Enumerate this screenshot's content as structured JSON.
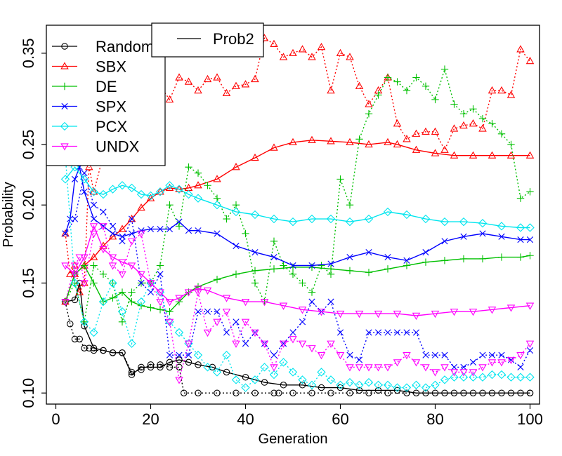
{
  "chart_data": {
    "type": "line",
    "xlabel": "Generation",
    "ylabel": "Probability",
    "xlim": [
      -2,
      102
    ],
    "ylim": [
      0.096,
      0.388
    ],
    "y_scale": "log",
    "xticks": [
      0,
      20,
      40,
      60,
      80,
      100
    ],
    "yticks": [
      0.1,
      0.15,
      0.2,
      0.25,
      0.35
    ],
    "xtick_labels": [
      "0",
      "20",
      "40",
      "60",
      "80",
      "100"
    ],
    "ytick_labels": [
      "0.10",
      "0.15",
      "0.20",
      "0.25",
      "0.35"
    ],
    "legend_placement": "top-left",
    "legend_prob2": "Prob2",
    "series": [
      {
        "name": "Random",
        "legend_label": "Random",
        "color": "#000000",
        "marker": "circle",
        "solid_x": [
          2,
          4,
          5,
          6,
          8,
          10,
          12,
          14,
          16,
          18,
          20,
          22,
          24,
          26,
          28,
          30,
          33,
          36,
          40,
          44,
          48,
          52,
          56,
          60,
          64,
          68,
          72,
          76,
          80,
          84,
          88,
          92,
          96,
          100
        ],
        "solid_y": [
          0.14,
          0.141,
          0.15,
          0.128,
          0.118,
          0.117,
          0.116,
          0.116,
          0.107,
          0.11,
          0.11,
          0.11,
          0.112,
          0.113,
          0.112,
          0.111,
          0.11,
          0.108,
          0.106,
          0.104,
          0.103,
          0.103,
          0.102,
          0.102,
          0.101,
          0.101,
          0.101,
          0.1,
          0.1,
          0.1,
          0.1,
          0.1,
          0.1,
          0.1
        ],
        "dotted_x": [
          2,
          3,
          4,
          5,
          6,
          7,
          8,
          10,
          12,
          14,
          16,
          18,
          20,
          22,
          24,
          26,
          27,
          30,
          34,
          38,
          42,
          46,
          47,
          50,
          54,
          58,
          62,
          66,
          70,
          74,
          78,
          82,
          86,
          90,
          94,
          98,
          100
        ],
        "dotted_y": [
          0.14,
          0.129,
          0.122,
          0.122,
          0.118,
          0.118,
          0.117,
          0.117,
          0.116,
          0.116,
          0.108,
          0.109,
          0.111,
          0.111,
          0.11,
          0.11,
          0.1,
          0.1,
          0.1,
          0.1,
          0.1,
          0.1,
          0.1,
          0.1,
          0.1,
          0.1,
          0.1,
          0.1,
          0.1,
          0.1,
          0.1,
          0.1,
          0.1,
          0.1,
          0.1,
          0.1,
          0.1
        ]
      },
      {
        "name": "SBX",
        "legend_label": "SBX",
        "color": "#ff0000",
        "marker": "triangle",
        "solid_x": [
          2,
          4,
          6,
          8,
          10,
          12,
          14,
          16,
          18,
          20,
          22,
          24,
          26,
          28,
          30,
          34,
          38,
          42,
          46,
          50,
          54,
          58,
          62,
          66,
          70,
          72,
          76,
          80,
          84,
          88,
          92,
          96,
          100
        ],
        "solid_y": [
          0.14,
          0.155,
          0.16,
          0.165,
          0.172,
          0.178,
          0.183,
          0.19,
          0.198,
          0.205,
          0.21,
          0.213,
          0.212,
          0.213,
          0.215,
          0.22,
          0.23,
          0.238,
          0.247,
          0.252,
          0.254,
          0.253,
          0.252,
          0.25,
          0.252,
          0.25,
          0.245,
          0.242,
          0.24,
          0.24,
          0.24,
          0.24,
          0.24
        ],
        "dotted_x": [
          2,
          3,
          4,
          5,
          6,
          7,
          8,
          10,
          12,
          14,
          16,
          18,
          20,
          22,
          24,
          26,
          28,
          30,
          32,
          34,
          36,
          38,
          40,
          42,
          44,
          46,
          48,
          50,
          52,
          54,
          56,
          58,
          60,
          62,
          64,
          66,
          68,
          70,
          72,
          74,
          76,
          78,
          80,
          82,
          84,
          86,
          88,
          90,
          92,
          94,
          96,
          98,
          100
        ],
        "dotted_y": [
          0.18,
          0.155,
          0.16,
          0.145,
          0.15,
          0.23,
          0.21,
          0.24,
          0.26,
          0.28,
          0.29,
          0.3,
          0.305,
          0.31,
          0.295,
          0.32,
          0.315,
          0.305,
          0.318,
          0.32,
          0.302,
          0.31,
          0.312,
          0.318,
          0.37,
          0.362,
          0.345,
          0.35,
          0.355,
          0.345,
          0.358,
          0.305,
          0.35,
          0.345,
          0.31,
          0.29,
          0.305,
          0.32,
          0.27,
          0.255,
          0.26,
          0.262,
          0.262,
          0.245,
          0.265,
          0.268,
          0.27,
          0.265,
          0.305,
          0.305,
          0.3,
          0.355,
          0.34
        ]
      },
      {
        "name": "DE",
        "legend_label": "DE",
        "color": "#00c000",
        "marker": "plus",
        "solid_x": [
          2,
          4,
          6,
          8,
          10,
          12,
          14,
          16,
          18,
          20,
          22,
          24,
          26,
          28,
          30,
          34,
          38,
          42,
          46,
          50,
          54,
          58,
          62,
          66,
          70,
          74,
          78,
          82,
          86,
          90,
          94,
          98,
          100
        ],
        "solid_y": [
          0.14,
          0.155,
          0.16,
          0.15,
          0.14,
          0.142,
          0.145,
          0.14,
          0.138,
          0.137,
          0.136,
          0.135,
          0.14,
          0.145,
          0.148,
          0.152,
          0.155,
          0.157,
          0.158,
          0.159,
          0.159,
          0.158,
          0.157,
          0.156,
          0.158,
          0.16,
          0.162,
          0.163,
          0.164,
          0.164,
          0.165,
          0.165,
          0.166
        ],
        "dotted_x": [
          2,
          4,
          6,
          8,
          10,
          12,
          14,
          16,
          18,
          20,
          22,
          24,
          26,
          28,
          30,
          32,
          34,
          36,
          38,
          40,
          42,
          44,
          46,
          48,
          50,
          52,
          54,
          56,
          58,
          60,
          62,
          64,
          66,
          68,
          70,
          72,
          74,
          76,
          78,
          80,
          82,
          84,
          86,
          88,
          90,
          92,
          94,
          96,
          98,
          100
        ],
        "dotted_y": [
          0.14,
          0.15,
          0.13,
          0.16,
          0.155,
          0.15,
          0.13,
          0.145,
          0.15,
          0.15,
          0.16,
          0.2,
          0.185,
          0.23,
          0.225,
          0.215,
          0.205,
          0.19,
          0.2,
          0.18,
          0.15,
          0.14,
          0.175,
          0.16,
          0.155,
          0.15,
          0.145,
          0.16,
          0.155,
          0.22,
          0.2,
          0.255,
          0.28,
          0.3,
          0.32,
          0.315,
          0.305,
          0.32,
          0.31,
          0.295,
          0.33,
          0.29,
          0.28,
          0.285,
          0.275,
          0.27,
          0.26,
          0.25,
          0.205,
          0.21
        ]
      },
      {
        "name": "SPX",
        "legend_label": "SPX",
        "color": "#0000ff",
        "marker": "cross",
        "solid_x": [
          2,
          3,
          4,
          5,
          6,
          8,
          10,
          12,
          14,
          16,
          18,
          20,
          22,
          24,
          26,
          28,
          30,
          34,
          38,
          42,
          46,
          50,
          54,
          58,
          62,
          66,
          70,
          74,
          78,
          82,
          86,
          90,
          94,
          98,
          100
        ],
        "solid_y": [
          0.18,
          0.19,
          0.22,
          0.23,
          0.21,
          0.19,
          0.185,
          0.18,
          0.178,
          0.18,
          0.182,
          0.183,
          0.183,
          0.183,
          0.188,
          0.182,
          0.182,
          0.18,
          0.172,
          0.168,
          0.165,
          0.16,
          0.16,
          0.161,
          0.165,
          0.168,
          0.165,
          0.163,
          0.168,
          0.175,
          0.178,
          0.18,
          0.178,
          0.176,
          0.176
        ],
        "dotted_x": [
          2,
          4,
          6,
          8,
          10,
          12,
          14,
          16,
          18,
          20,
          22,
          24,
          26,
          28,
          30,
          32,
          34,
          36,
          38,
          40,
          42,
          44,
          46,
          48,
          50,
          52,
          54,
          56,
          58,
          60,
          62,
          64,
          66,
          68,
          70,
          72,
          74,
          76,
          78,
          80,
          82,
          84,
          86,
          88,
          90,
          92,
          94,
          96,
          98,
          100
        ],
        "dotted_y": [
          0.18,
          0.19,
          0.225,
          0.2,
          0.195,
          0.185,
          0.175,
          0.19,
          0.15,
          0.145,
          0.155,
          0.115,
          0.115,
          0.115,
          0.135,
          0.135,
          0.135,
          0.125,
          0.13,
          0.12,
          0.125,
          0.12,
          0.115,
          0.12,
          0.125,
          0.13,
          0.14,
          0.135,
          0.14,
          0.125,
          0.115,
          0.113,
          0.125,
          0.125,
          0.125,
          0.125,
          0.125,
          0.125,
          0.115,
          0.115,
          0.115,
          0.11,
          0.11,
          0.112,
          0.115,
          0.115,
          0.115,
          0.113,
          0.11,
          0.117
        ]
      },
      {
        "name": "PCX",
        "legend_label": "PCX",
        "color": "#00e5ee",
        "marker": "diamond",
        "solid_x": [
          2,
          4,
          6,
          8,
          10,
          12,
          14,
          16,
          18,
          20,
          22,
          24,
          26,
          28,
          30,
          34,
          38,
          42,
          46,
          50,
          54,
          58,
          62,
          66,
          70,
          74,
          78,
          82,
          86,
          90,
          94,
          98,
          100
        ],
        "solid_y": [
          0.22,
          0.23,
          0.22,
          0.21,
          0.208,
          0.212,
          0.215,
          0.213,
          0.208,
          0.207,
          0.21,
          0.215,
          0.212,
          0.208,
          0.205,
          0.2,
          0.195,
          0.193,
          0.19,
          0.188,
          0.19,
          0.19,
          0.188,
          0.19,
          0.195,
          0.193,
          0.19,
          0.188,
          0.188,
          0.187,
          0.185,
          0.184,
          0.184
        ],
        "dotted_x": [
          2,
          4,
          6,
          8,
          10,
          12,
          14,
          16,
          18,
          20,
          22,
          24,
          26,
          28,
          30,
          32,
          34,
          36,
          38,
          40,
          42,
          44,
          46,
          48,
          50,
          52,
          54,
          56,
          58,
          60,
          62,
          64,
          66,
          68,
          70,
          72,
          74,
          76,
          78,
          80,
          82,
          84,
          86,
          88,
          90,
          92,
          94,
          96,
          98,
          100
        ],
        "dotted_y": [
          0.24,
          0.15,
          0.13,
          0.125,
          0.14,
          0.15,
          0.135,
          0.12,
          0.14,
          0.15,
          0.145,
          0.13,
          0.125,
          0.12,
          0.115,
          0.11,
          0.108,
          0.115,
          0.105,
          0.102,
          0.105,
          0.11,
          0.107,
          0.112,
          0.108,
          0.105,
          0.103,
          0.108,
          0.105,
          0.103,
          0.104,
          0.103,
          0.104,
          0.103,
          0.103,
          0.102,
          0.102,
          0.103,
          0.102,
          0.103,
          0.105,
          0.106,
          0.106,
          0.106,
          0.106,
          0.107,
          0.107,
          0.106,
          0.106,
          0.106
        ]
      },
      {
        "name": "UNDX",
        "legend_label": "UNDX",
        "color": "#ff00ff",
        "marker": "triangle-down",
        "solid_x": [
          2,
          4,
          6,
          8,
          10,
          12,
          14,
          16,
          18,
          20,
          22,
          24,
          26,
          28,
          30,
          32,
          36,
          40,
          44,
          48,
          52,
          56,
          60,
          64,
          68,
          72,
          76,
          80,
          84,
          88,
          92,
          96,
          100
        ],
        "solid_y": [
          0.16,
          0.155,
          0.165,
          0.185,
          0.17,
          0.165,
          0.162,
          0.16,
          0.155,
          0.15,
          0.145,
          0.14,
          0.142,
          0.145,
          0.147,
          0.146,
          0.142,
          0.14,
          0.14,
          0.138,
          0.136,
          0.135,
          0.134,
          0.134,
          0.134,
          0.134,
          0.133,
          0.134,
          0.135,
          0.135,
          0.136,
          0.137,
          0.138
        ],
        "dotted_x": [
          2,
          4,
          5,
          6,
          8,
          10,
          12,
          14,
          16,
          18,
          20,
          22,
          24,
          26,
          28,
          30,
          32,
          34,
          36,
          38,
          40,
          42,
          44,
          46,
          48,
          50,
          52,
          54,
          56,
          58,
          60,
          62,
          64,
          66,
          68,
          70,
          72,
          74,
          76,
          78,
          80,
          82,
          84,
          86,
          88,
          90,
          92,
          94,
          96,
          98,
          100
        ],
        "dotted_y": [
          0.14,
          0.16,
          0.165,
          0.15,
          0.18,
          0.185,
          0.16,
          0.155,
          0.175,
          0.18,
          0.15,
          0.14,
          0.13,
          0.105,
          0.12,
          0.145,
          0.125,
          0.13,
          0.135,
          0.12,
          0.13,
          0.125,
          0.12,
          0.11,
          0.12,
          0.122,
          0.12,
          0.118,
          0.115,
          0.12,
          0.115,
          0.11,
          0.11,
          0.11,
          0.11,
          0.11,
          0.112,
          0.115,
          0.112,
          0.11,
          0.108,
          0.11,
          0.108,
          0.108,
          0.108,
          0.11,
          0.112,
          0.112,
          0.113,
          0.115,
          0.12
        ]
      }
    ]
  }
}
